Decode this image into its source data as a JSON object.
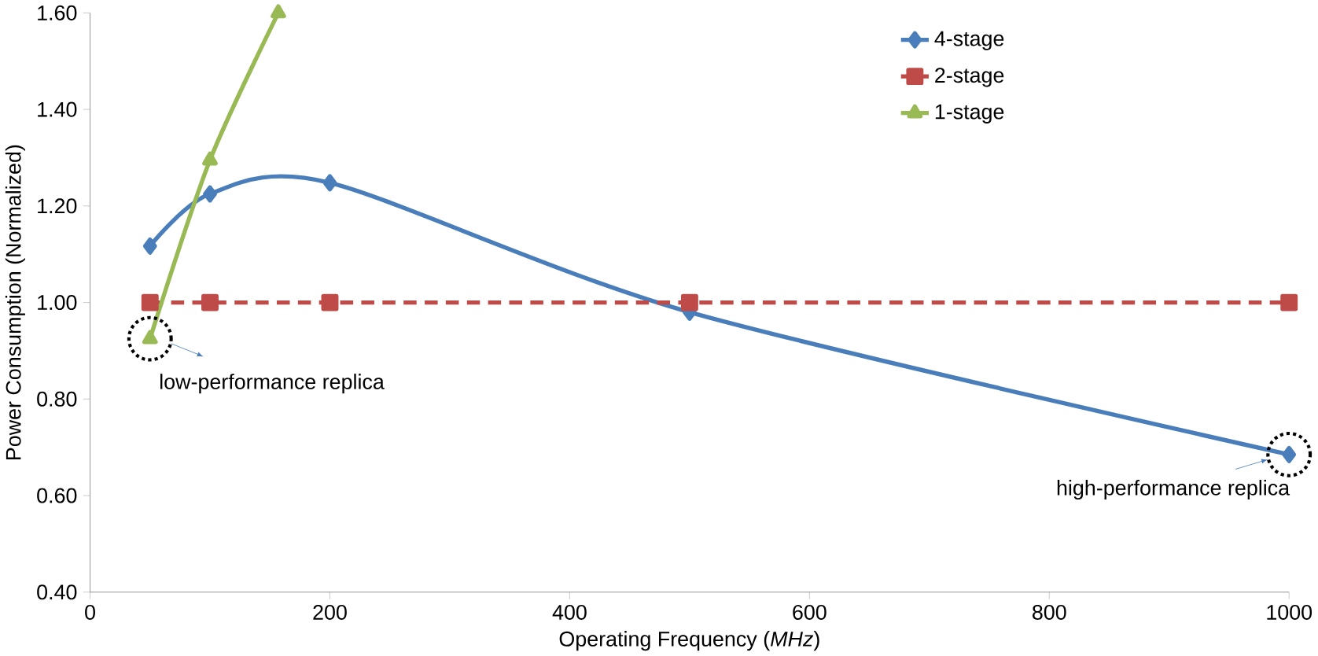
{
  "chart_data": {
    "type": "line",
    "xlabel": "Operating Frequency (*MHz*)",
    "ylabel": "Power Consumption (Normalized)",
    "xlim": [
      0,
      1000
    ],
    "xticks": [
      0,
      200,
      400,
      600,
      800,
      1000
    ],
    "ylim": [
      0.4,
      1.6
    ],
    "yticks": [
      {
        "value": 0.4,
        "label": "0.40"
      },
      {
        "value": 0.6,
        "label": "0.60"
      },
      {
        "value": 0.8,
        "label": "0.80"
      },
      {
        "value": 1.0,
        "label": "1.00"
      },
      {
        "value": 1.2,
        "label": "1.20"
      },
      {
        "value": 1.4,
        "label": "1.40"
      },
      {
        "value": 1.6,
        "label": "1.60"
      }
    ],
    "series": [
      {
        "name": "4-stage",
        "color": "#4a7ebb",
        "marker": "diamond",
        "line_style": "solid",
        "x": [
          50,
          100,
          200,
          500,
          1000
        ],
        "values": [
          1.117,
          1.225,
          1.248,
          0.98,
          0.685
        ]
      },
      {
        "name": "2-stage",
        "color": "#be4b48",
        "marker": "square",
        "line_style": "dashed",
        "x": [
          50,
          100,
          200,
          500,
          1000
        ],
        "values": [
          1.0,
          1.0,
          1.0,
          1.0,
          1.0
        ]
      },
      {
        "name": "1-stage",
        "color": "#98b954",
        "marker": "triangle",
        "line_style": "solid",
        "x": [
          50,
          100,
          157
        ],
        "values": [
          0.925,
          1.295,
          1.6
        ]
      }
    ],
    "legend": "top right",
    "grid": false,
    "annotations": [
      {
        "text": "low-performance replica",
        "x": 50,
        "y": 0.925
      },
      {
        "text": "high-performance replica",
        "x": 1000,
        "y": 0.685
      }
    ]
  }
}
